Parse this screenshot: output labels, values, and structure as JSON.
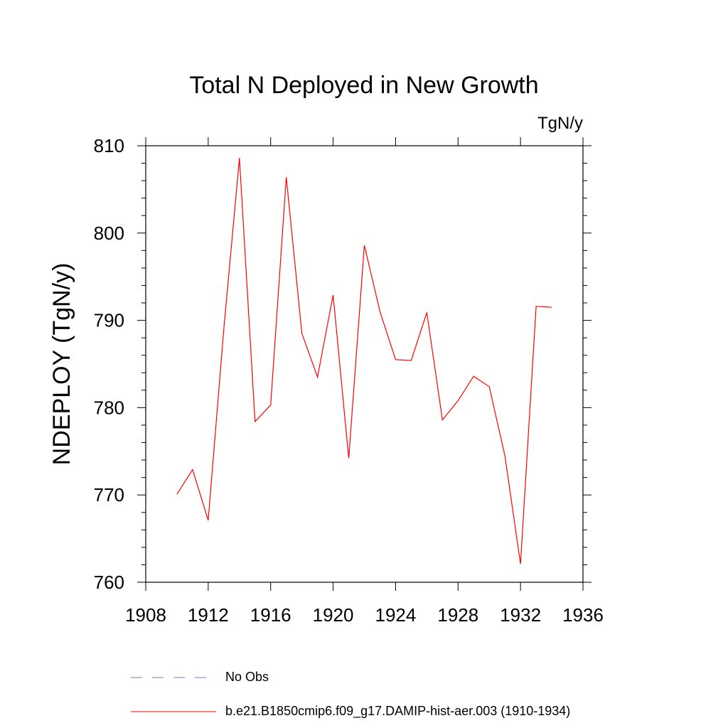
{
  "chart_data": {
    "type": "line",
    "title": "Total N Deployed in New Growth",
    "units_label": "TgN/y",
    "xlabel": "",
    "ylabel": "NDEPLOY  (TgN/y)",
    "xlim": [
      1908,
      1936
    ],
    "ylim": [
      760,
      810
    ],
    "x_ticks": [
      1908,
      1912,
      1916,
      1920,
      1924,
      1928,
      1932,
      1936
    ],
    "y_ticks": [
      760,
      770,
      780,
      790,
      800,
      810
    ],
    "grid": false,
    "legend_position": "bottom",
    "series": [
      {
        "name": "b.e21.B1850cmip6.f09_g17.DAMIP-hist-aer.003 (1910-1934)",
        "color": "#ff0000",
        "style": "solid",
        "x": [
          1910,
          1911,
          1912,
          1913,
          1914,
          1915,
          1916,
          1917,
          1918,
          1919,
          1920,
          1921,
          1922,
          1923,
          1924,
          1925,
          1926,
          1927,
          1928,
          1929,
          1930,
          1931,
          1932,
          1933,
          1934
        ],
        "y": [
          770.1,
          772.9,
          767.1,
          789.0,
          808.6,
          778.4,
          780.3,
          806.4,
          788.5,
          783.5,
          792.9,
          774.2,
          798.6,
          791.0,
          785.5,
          785.4,
          790.9,
          778.6,
          780.8,
          783.6,
          782.4,
          774.5,
          762.1,
          791.6,
          791.5
        ]
      }
    ],
    "legend": [
      {
        "label": "No Obs",
        "color": "#7b72c8",
        "style": "dashed"
      },
      {
        "label": "b.e21.B1850cmip6.f09_g17.DAMIP-hist-aer.003 (1910-1934)",
        "color": "#ff0000",
        "style": "solid"
      }
    ]
  }
}
